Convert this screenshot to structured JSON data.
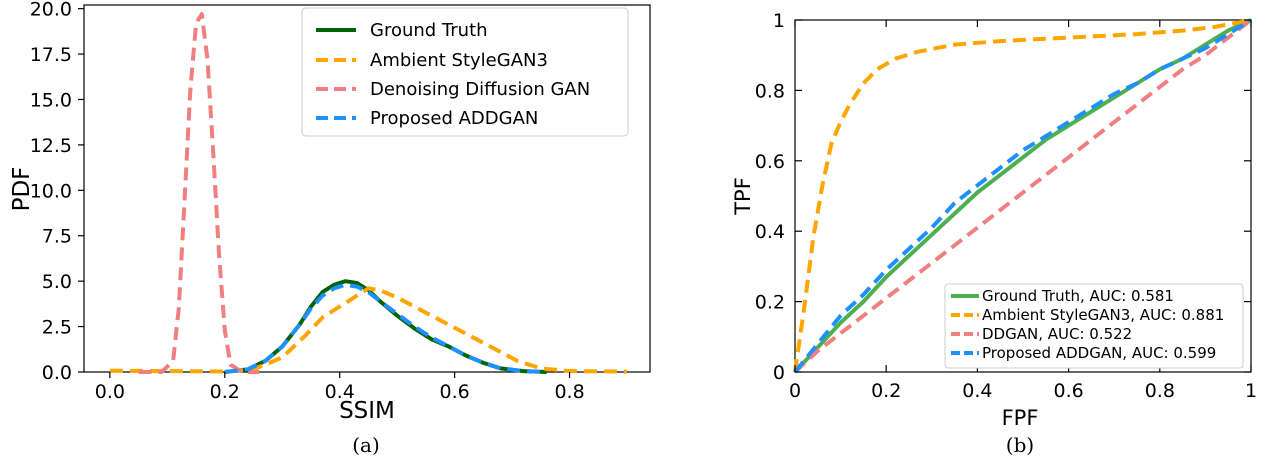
{
  "chart_data": [
    {
      "type": "line",
      "caption": "(a)",
      "xlabel": "SSIM",
      "ylabel": "PDF",
      "xlim": [
        -0.045,
        0.94
      ],
      "ylim": [
        0,
        20.2
      ],
      "xticks": [
        0.0,
        0.2,
        0.4,
        0.6,
        0.8
      ],
      "xtick_labels": [
        "0.0",
        "0.2",
        "0.4",
        "0.6",
        "0.8"
      ],
      "yticks": [
        0,
        2.5,
        5,
        7.5,
        10,
        12.5,
        15,
        17.5,
        20
      ],
      "ytick_labels": [
        "0.0",
        "2.5",
        "5.0",
        "7.5",
        "10.0",
        "12.5",
        "15.0",
        "17.5",
        "20.0"
      ],
      "legend_position": "top-right",
      "series": [
        {
          "name": "Ground Truth",
          "color": "#006400",
          "dash": "solid",
          "width": 4,
          "points": [
            [
              0.2,
              0
            ],
            [
              0.24,
              0.15
            ],
            [
              0.27,
              0.6
            ],
            [
              0.3,
              1.4
            ],
            [
              0.33,
              2.6
            ],
            [
              0.35,
              3.6
            ],
            [
              0.37,
              4.4
            ],
            [
              0.39,
              4.8
            ],
            [
              0.41,
              5.0
            ],
            [
              0.43,
              4.9
            ],
            [
              0.45,
              4.5
            ],
            [
              0.47,
              3.9
            ],
            [
              0.5,
              3.1
            ],
            [
              0.53,
              2.4
            ],
            [
              0.56,
              1.8
            ],
            [
              0.59,
              1.4
            ],
            [
              0.62,
              0.9
            ],
            [
              0.65,
              0.5
            ],
            [
              0.68,
              0.2
            ],
            [
              0.72,
              0.05
            ],
            [
              0.76,
              0
            ]
          ]
        },
        {
          "name": "Ambient StyleGAN3",
          "color": "#FFA500",
          "dash": "dashed",
          "width": 4,
          "points": [
            [
              0.0,
              0.07
            ],
            [
              0.1,
              0.05
            ],
            [
              0.2,
              0.03
            ],
            [
              0.25,
              0.15
            ],
            [
              0.3,
              0.8
            ],
            [
              0.34,
              2.0
            ],
            [
              0.37,
              3.0
            ],
            [
              0.4,
              3.6
            ],
            [
              0.43,
              4.2
            ],
            [
              0.45,
              4.6
            ],
            [
              0.47,
              4.5
            ],
            [
              0.5,
              4.1
            ],
            [
              0.53,
              3.6
            ],
            [
              0.56,
              3.1
            ],
            [
              0.59,
              2.6
            ],
            [
              0.62,
              2.1
            ],
            [
              0.65,
              1.6
            ],
            [
              0.68,
              1.1
            ],
            [
              0.71,
              0.6
            ],
            [
              0.75,
              0.2
            ],
            [
              0.8,
              0.05
            ],
            [
              0.9,
              0.02
            ]
          ]
        },
        {
          "name": "Denoising Diffusion GAN",
          "color": "#F08080",
          "dash": "dashed",
          "width": 4,
          "points": [
            [
              0.05,
              0
            ],
            [
              0.09,
              0
            ],
            [
              0.11,
              0.6
            ],
            [
              0.12,
              3.5
            ],
            [
              0.13,
              9.5
            ],
            [
              0.14,
              15.5
            ],
            [
              0.15,
              19.2
            ],
            [
              0.16,
              19.7
            ],
            [
              0.17,
              17.2
            ],
            [
              0.18,
              12.0
            ],
            [
              0.19,
              6.5
            ],
            [
              0.2,
              2.3
            ],
            [
              0.21,
              0.4
            ],
            [
              0.23,
              0
            ],
            [
              0.26,
              0
            ]
          ]
        },
        {
          "name": "Proposed ADDGAN",
          "color": "#1E90FF",
          "dash": "dashed",
          "width": 4,
          "points": [
            [
              0.2,
              0
            ],
            [
              0.24,
              0.15
            ],
            [
              0.27,
              0.6
            ],
            [
              0.3,
              1.4
            ],
            [
              0.33,
              2.6
            ],
            [
              0.35,
              3.5
            ],
            [
              0.37,
              4.2
            ],
            [
              0.39,
              4.6
            ],
            [
              0.41,
              4.8
            ],
            [
              0.43,
              4.7
            ],
            [
              0.45,
              4.4
            ],
            [
              0.47,
              3.9
            ],
            [
              0.5,
              3.2
            ],
            [
              0.53,
              2.5
            ],
            [
              0.56,
              1.9
            ],
            [
              0.59,
              1.4
            ],
            [
              0.62,
              0.9
            ],
            [
              0.65,
              0.5
            ],
            [
              0.68,
              0.2
            ],
            [
              0.72,
              0.05
            ],
            [
              0.76,
              0
            ]
          ]
        }
      ]
    },
    {
      "type": "line",
      "caption": "(b)",
      "xlabel": "FPF",
      "ylabel": "TPF",
      "xlim": [
        0,
        1
      ],
      "ylim": [
        0,
        1
      ],
      "xticks": [
        0,
        0.2,
        0.4,
        0.6,
        0.8,
        1
      ],
      "xtick_labels": [
        "0",
        "0.2",
        "0.4",
        "0.6",
        "0.8",
        "1"
      ],
      "yticks": [
        0,
        0.2,
        0.4,
        0.6,
        0.8,
        1
      ],
      "ytick_labels": [
        "0",
        "0.2",
        "0.4",
        "0.6",
        "0.8",
        "1"
      ],
      "legend_position": "bottom-right",
      "series": [
        {
          "name": "Ground Truth, AUC: 0.581",
          "color": "#4CAF50",
          "dash": "solid",
          "width": 4,
          "points": [
            [
              0,
              0
            ],
            [
              0.05,
              0.07
            ],
            [
              0.1,
              0.14
            ],
            [
              0.15,
              0.2
            ],
            [
              0.2,
              0.27
            ],
            [
              0.25,
              0.33
            ],
            [
              0.3,
              0.39
            ],
            [
              0.35,
              0.45
            ],
            [
              0.4,
              0.51
            ],
            [
              0.45,
              0.56
            ],
            [
              0.5,
              0.61
            ],
            [
              0.55,
              0.66
            ],
            [
              0.6,
              0.7
            ],
            [
              0.65,
              0.74
            ],
            [
              0.7,
              0.78
            ],
            [
              0.75,
              0.82
            ],
            [
              0.8,
              0.86
            ],
            [
              0.85,
              0.89
            ],
            [
              0.9,
              0.93
            ],
            [
              0.95,
              0.97
            ],
            [
              1,
              1
            ]
          ]
        },
        {
          "name": "Ambient StyleGAN3, AUC: 0.881",
          "color": "#FFA500",
          "dash": "dashed",
          "width": 4,
          "points": [
            [
              0,
              0
            ],
            [
              0.02,
              0.18
            ],
            [
              0.04,
              0.38
            ],
            [
              0.06,
              0.53
            ],
            [
              0.08,
              0.65
            ],
            [
              0.1,
              0.71
            ],
            [
              0.12,
              0.76
            ],
            [
              0.15,
              0.82
            ],
            [
              0.18,
              0.86
            ],
            [
              0.22,
              0.89
            ],
            [
              0.27,
              0.91
            ],
            [
              0.35,
              0.93
            ],
            [
              0.45,
              0.94
            ],
            [
              0.6,
              0.95
            ],
            [
              0.75,
              0.96
            ],
            [
              0.85,
              0.97
            ],
            [
              0.92,
              0.98
            ],
            [
              0.96,
              0.99
            ],
            [
              1,
              1
            ]
          ]
        },
        {
          "name": "DDGAN, AUC: 0.522",
          "color": "#F08080",
          "dash": "dashed",
          "width": 4,
          "points": [
            [
              0,
              0
            ],
            [
              0.05,
              0.06
            ],
            [
              0.1,
              0.11
            ],
            [
              0.15,
              0.16
            ],
            [
              0.2,
              0.21
            ],
            [
              0.25,
              0.26
            ],
            [
              0.3,
              0.31
            ],
            [
              0.35,
              0.36
            ],
            [
              0.4,
              0.41
            ],
            [
              0.45,
              0.46
            ],
            [
              0.5,
              0.51
            ],
            [
              0.55,
              0.56
            ],
            [
              0.6,
              0.61
            ],
            [
              0.65,
              0.66
            ],
            [
              0.7,
              0.71
            ],
            [
              0.75,
              0.76
            ],
            [
              0.8,
              0.81
            ],
            [
              0.85,
              0.86
            ],
            [
              0.9,
              0.9
            ],
            [
              0.95,
              0.95
            ],
            [
              1,
              1
            ]
          ]
        },
        {
          "name": "Proposed ADDGAN, AUC: 0.599",
          "color": "#1E90FF",
          "dash": "dashed",
          "width": 4,
          "points": [
            [
              0,
              0
            ],
            [
              0.05,
              0.08
            ],
            [
              0.1,
              0.16
            ],
            [
              0.15,
              0.22
            ],
            [
              0.2,
              0.29
            ],
            [
              0.25,
              0.35
            ],
            [
              0.3,
              0.41
            ],
            [
              0.35,
              0.48
            ],
            [
              0.4,
              0.53
            ],
            [
              0.45,
              0.58
            ],
            [
              0.5,
              0.63
            ],
            [
              0.55,
              0.67
            ],
            [
              0.6,
              0.71
            ],
            [
              0.65,
              0.75
            ],
            [
              0.7,
              0.79
            ],
            [
              0.75,
              0.82
            ],
            [
              0.8,
              0.86
            ],
            [
              0.85,
              0.89
            ],
            [
              0.9,
              0.92
            ],
            [
              0.95,
              0.96
            ],
            [
              1,
              1
            ]
          ]
        }
      ]
    }
  ]
}
